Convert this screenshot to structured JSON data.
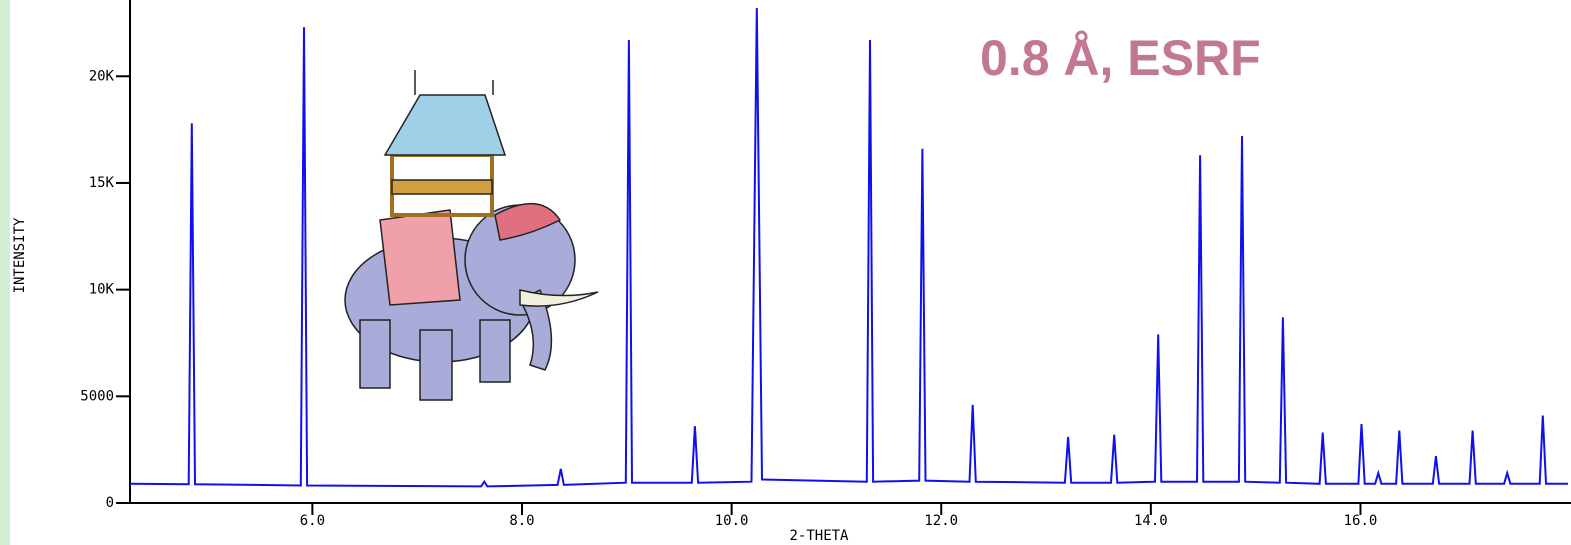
{
  "chart_data": {
    "type": "line",
    "x_label": "2-THETA",
    "y_label": "INTENSITY",
    "annotation": "0.8 Å, ESRF",
    "color": "#1010ee",
    "xlim": [
      4.26,
      17.98
    ],
    "ylim": [
      0,
      23200
    ],
    "xticks": [
      {
        "value": 6,
        "label": "6.0"
      },
      {
        "value": 8,
        "label": "8.0"
      },
      {
        "value": 10,
        "label": "10.0"
      },
      {
        "value": 12,
        "label": "12.0"
      },
      {
        "value": 14,
        "label": "14.0"
      },
      {
        "value": 16,
        "label": "16.0"
      }
    ],
    "yticks": [
      0,
      5000,
      {
        "value": 10000,
        "label": "10K"
      },
      {
        "value": 15000,
        "label": "15K"
      },
      {
        "value": 20000,
        "label": "20K"
      }
    ],
    "x": [
      4.26,
      4.82,
      4.85,
      4.88,
      5.89,
      5.92,
      5.95,
      7.61,
      7.64,
      7.67,
      8.34,
      8.37,
      8.4,
      8.99,
      9.02,
      9.05,
      9.62,
      9.65,
      9.68,
      10.19,
      10.24,
      10.29,
      11.29,
      11.32,
      11.35,
      11.79,
      11.82,
      11.85,
      12.27,
      12.3,
      12.33,
      13.18,
      13.21,
      13.24,
      13.62,
      13.65,
      13.68,
      14.04,
      14.07,
      14.1,
      14.44,
      14.47,
      14.5,
      14.84,
      14.87,
      14.9,
      15.23,
      15.26,
      15.29,
      15.61,
      15.64,
      15.67,
      15.98,
      16.01,
      16.04,
      16.14,
      16.17,
      16.2,
      16.34,
      16.37,
      16.4,
      16.69,
      16.72,
      16.75,
      17.04,
      17.07,
      17.1,
      17.37,
      17.4,
      17.43,
      17.71,
      17.74,
      17.77,
      17.98
    ],
    "values": [
      900,
      880,
      17800,
      880,
      820,
      22300,
      820,
      780,
      1000,
      780,
      850,
      1600,
      850,
      950,
      21700,
      950,
      950,
      3600,
      950,
      1000,
      23200,
      1100,
      1000,
      21700,
      1000,
      1050,
      16600,
      1050,
      1000,
      4600,
      1000,
      950,
      3100,
      950,
      950,
      3200,
      950,
      1000,
      7900,
      1000,
      1000,
      16300,
      1000,
      1000,
      17200,
      1000,
      950,
      8700,
      950,
      900,
      3300,
      900,
      900,
      3700,
      900,
      900,
      1400,
      900,
      900,
      3400,
      900,
      900,
      2200,
      900,
      900,
      3400,
      900,
      900,
      1400,
      900,
      900,
      4100,
      900,
      900
    ]
  }
}
